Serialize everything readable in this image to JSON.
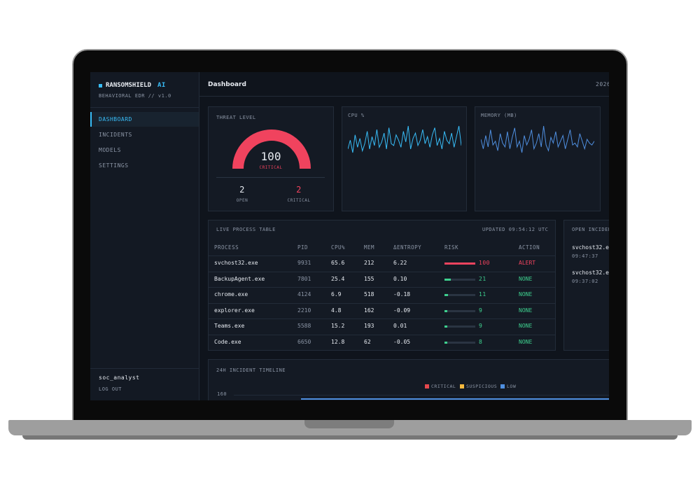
{
  "brand": {
    "name": "RANSOMSHIELD",
    "suffix": "AI",
    "subtitle": "BEHAVIORAL EDR // v1.0"
  },
  "nav": [
    "DASHBOARD",
    "INCIDENTS",
    "MODELS",
    "SETTINGS"
  ],
  "user": {
    "name": "soc_analyst",
    "logout": "LOG OUT"
  },
  "header": {
    "title": "Dashboard",
    "date": "2026"
  },
  "threat": {
    "label": "THREAT LEVEL",
    "value": 100,
    "status": "CRITICAL",
    "stats": [
      {
        "value": 2,
        "label": "OPEN"
      },
      {
        "value": 2,
        "label": "CRITICAL"
      }
    ]
  },
  "cpu": {
    "label": "CPU %",
    "values": [
      30,
      55,
      20,
      70,
      35,
      60,
      25,
      45,
      80,
      30,
      65,
      40,
      85,
      35,
      50,
      75,
      30,
      90,
      45,
      40,
      70,
      55,
      35,
      80,
      50,
      95,
      30,
      60,
      75,
      40,
      55,
      85,
      45,
      65,
      35,
      70,
      90,
      40,
      60,
      30,
      80,
      55,
      45,
      75,
      35,
      65,
      95,
      40
    ]
  },
  "memory": {
    "label": "MEMORY (MB)",
    "values": [
      60,
      35,
      70,
      40,
      85,
      45,
      55,
      30,
      75,
      50,
      40,
      80,
      35,
      65,
      90,
      40,
      55,
      25,
      70,
      45,
      60,
      85,
      35,
      50,
      75,
      40,
      95,
      45,
      30,
      65,
      50,
      80,
      40,
      55,
      70,
      35,
      60,
      85,
      45,
      50,
      40,
      75,
      55,
      35,
      60,
      50,
      45,
      55
    ]
  },
  "process_table": {
    "title": "LIVE PROCESS TABLE",
    "updated": "UPDATED 09:54:12 UTC",
    "columns": [
      "PROCESS",
      "PID",
      "CPU%",
      "MEM",
      "ΔENTROPY",
      "RISK",
      "ACTION"
    ],
    "rows": [
      [
        "svchost32.exe",
        9931,
        65.6,
        212,
        "6.22",
        100,
        "ALERT"
      ],
      [
        "BackupAgent.exe",
        7801,
        25.4,
        155,
        "0.10",
        21,
        "NONE"
      ],
      [
        "chrome.exe",
        4124,
        6.9,
        518,
        "-0.18",
        11,
        "NONE"
      ],
      [
        "explorer.exe",
        2210,
        4.8,
        162,
        "-0.09",
        9,
        "NONE"
      ],
      [
        "Teams.exe",
        5588,
        15.2,
        193,
        "0.01",
        9,
        "NONE"
      ],
      [
        "Code.exe",
        6650,
        12.8,
        62,
        "-0.05",
        8,
        "NONE"
      ]
    ]
  },
  "incidents": {
    "title": "OPEN INCIDENT",
    "items": [
      {
        "name": "svchost32.e",
        "time": "09:47:37"
      },
      {
        "name": "svchost32.e",
        "time": "09:37:02"
      }
    ]
  },
  "timeline": {
    "title": "24H INCIDENT TIMELINE",
    "legend": [
      {
        "name": "CRITICAL",
        "color": "#e5484d"
      },
      {
        "name": "SUSPICIOUS",
        "color": "#f5b93e"
      },
      {
        "name": "LOW",
        "color": "#4f8fe0"
      }
    ],
    "yticks": [
      160
    ]
  }
}
